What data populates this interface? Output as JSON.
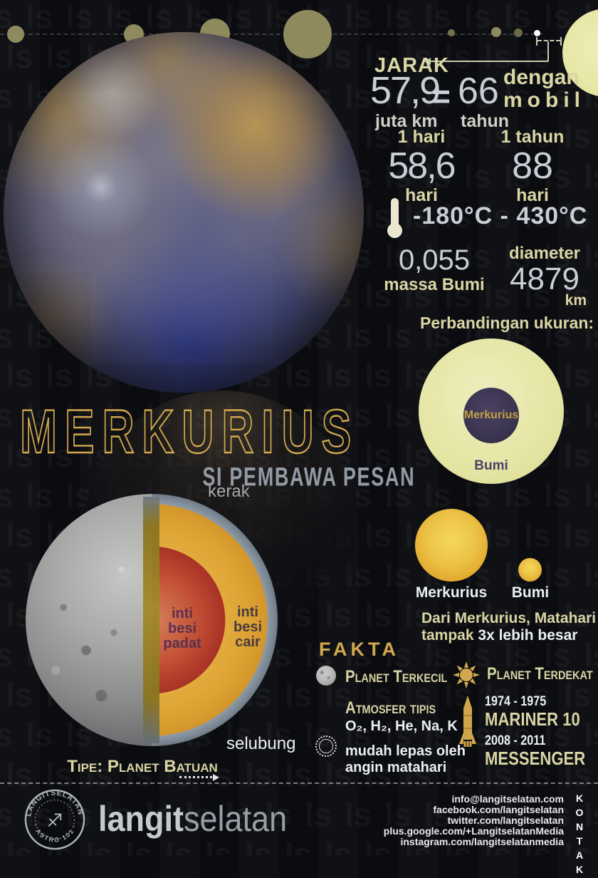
{
  "watermark_glyph": "ls",
  "distance": {
    "label": "JARAK",
    "value": "57,9",
    "unit": "juta km",
    "equals": "=",
    "car_value": "66",
    "car_unit": "tahun",
    "by_line1": "dengan",
    "by_line2": "mobil"
  },
  "day": {
    "label": "1 hari",
    "value": "58,6",
    "unit": "hari"
  },
  "year": {
    "label": "1 tahun",
    "value": "88",
    "unit": "hari"
  },
  "temperature": {
    "range": "-180°C - 430°C"
  },
  "mass": {
    "value": "0,055",
    "label": "massa Bumi"
  },
  "diameter": {
    "label": "diameter",
    "value": "4879",
    "unit": "km"
  },
  "size_comparison": {
    "heading": "Perbandingan ukuran:",
    "inner": "Merkurius",
    "outer": "Bumi"
  },
  "sun_view": {
    "big": "Merkurius",
    "small": "Bumi",
    "line1": "Dari Merkurius, Matahari",
    "line2_plain": "tampak ",
    "line2_bold": "3x lebih besar"
  },
  "title": {
    "name": "MERKURIUS",
    "tagline": "SI PEMBAWA PESAN"
  },
  "interior": {
    "crust": "kerak",
    "mantle": "selubung",
    "solid_core": "inti\nbesi\npadat",
    "liquid_core": "inti\nbesi\ncair",
    "type": "Tipe: Planet Batuan"
  },
  "facts": {
    "heading": "FAKTA",
    "smallest": "Planet Terkecil",
    "atmosphere": "Atmosfer tipis",
    "elements": "O₂, H₂, He, Na, K",
    "note": "mudah lepas oleh\nangin matahari",
    "closest": "Planet Terdekat",
    "missions": [
      {
        "years": "1974 - 1975",
        "name": "MARINER 10"
      },
      {
        "years": "2008 - 2011",
        "name": "MESSENGER"
      }
    ]
  },
  "footer": {
    "brand_bold": "langit",
    "brand_light": "selatan",
    "stamp_top": "LANGITSELATAN",
    "stamp_bottom": "· ASTRO 101 ·",
    "kontak": "KONTAK",
    "contacts": [
      "info@langitselatan.com",
      "facebook.com/langitselatan",
      "twitter.com/langitselatan",
      "plus.google.com/+LangitselatanMedia",
      "instagram.com/langitselatanmedia"
    ]
  }
}
